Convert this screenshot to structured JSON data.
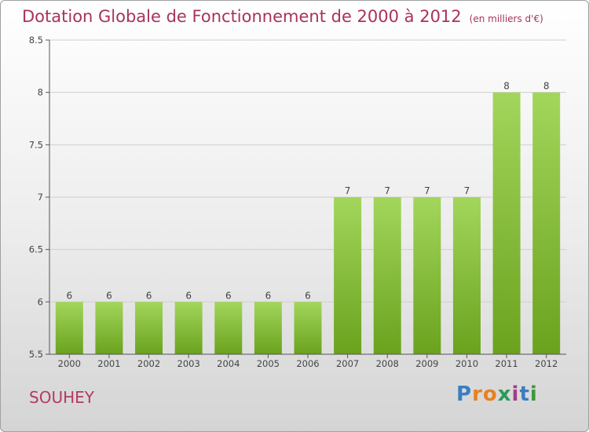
{
  "header": {
    "title": "Dotation Globale de Fonctionnement de 2000 à 2012",
    "unit": "(en milliers d'€)"
  },
  "footer": {
    "place": "SOUHEY",
    "logo_letters": [
      "P",
      "r",
      "o",
      "x",
      "i",
      "t",
      "i"
    ],
    "logo_colors": [
      "#3a7ec2",
      "#e8821e",
      "#e8821e",
      "#2a9a5a",
      "#a33b8a",
      "#3a7ec2",
      "#3a9a3a"
    ]
  },
  "colors": {
    "bar_top": "#a3d65c",
    "bar_bottom": "#6aa21d",
    "grid": "#cfcfcf",
    "axis": "#555555",
    "title": "#a8325f"
  },
  "chart_data": {
    "type": "bar",
    "title": "Dotation Globale de Fonctionnement de 2000 à 2012",
    "subtitle": "(en milliers d'€)",
    "xlabel": "",
    "ylabel": "",
    "categories": [
      "2000",
      "2001",
      "2002",
      "2003",
      "2004",
      "2005",
      "2006",
      "2007",
      "2008",
      "2009",
      "2010",
      "2011",
      "2012"
    ],
    "values": [
      6,
      6,
      6,
      6,
      6,
      6,
      6,
      7,
      7,
      7,
      7,
      8,
      8
    ],
    "data_labels": [
      "6",
      "6",
      "6",
      "6",
      "6",
      "6",
      "6",
      "7",
      "7",
      "7",
      "7",
      "8",
      "8"
    ],
    "ylim": [
      5.5,
      8.5
    ],
    "yticks": [
      5.5,
      6,
      6.5,
      7,
      7.5,
      8,
      8.5
    ],
    "ytick_labels": [
      "5.5",
      "6",
      "6.5",
      "7",
      "7.5",
      "8",
      "8.5"
    ],
    "grid": true,
    "legend": "none"
  }
}
